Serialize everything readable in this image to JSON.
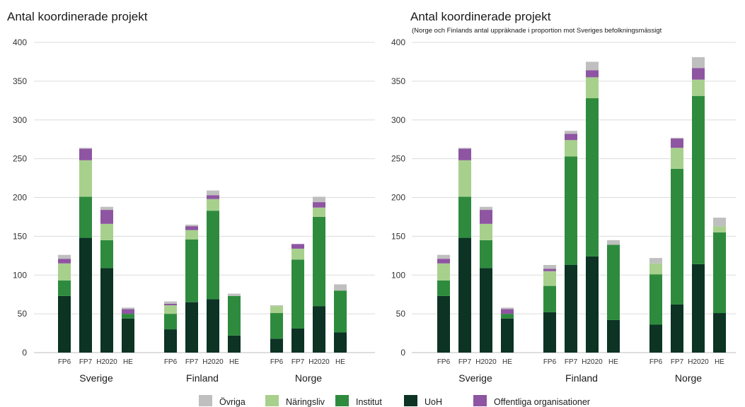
{
  "colors": {
    "Övriga": "#bfbfbf",
    "Näringsliv": "#a8d08d",
    "Institut": "#2e8b3e",
    "UoH": "#0c3324",
    "Offentliga organisationer": "#8e55a2"
  },
  "legend": [
    "Övriga",
    "Näringsliv",
    "Institut",
    "UoH",
    "Offentliga organisationer"
  ],
  "chart_data": [
    {
      "type": "bar",
      "stacked": true,
      "title": "Antal koordinerade projekt",
      "subtitle": "",
      "ylim": [
        0,
        400
      ],
      "yticks": [
        0,
        50,
        100,
        150,
        200,
        250,
        300,
        350,
        400
      ],
      "grid": true,
      "groups": [
        {
          "name": "Sverige",
          "categories": [
            "FP6",
            "FP7",
            "H2020",
            "HE"
          ],
          "series": {
            "UoH": [
              73,
              148,
              109,
              44
            ],
            "Institut": [
              20,
              53,
              36,
              6
            ],
            "Näringsliv": [
              22,
              47,
              21,
              0
            ],
            "Offentliga organisationer": [
              6,
              15,
              18,
              6
            ],
            "Övriga": [
              5,
              1,
              4,
              2
            ]
          }
        },
        {
          "name": "Finland",
          "categories": [
            "FP6",
            "FP7",
            "H2020",
            "HE"
          ],
          "series": {
            "UoH": [
              30,
              65,
              69,
              22
            ],
            "Institut": [
              20,
              81,
              114,
              51
            ],
            "Näringsliv": [
              11,
              12,
              15,
              0
            ],
            "Offentliga organisationer": [
              2,
              5,
              5,
              0
            ],
            "Övriga": [
              3,
              2,
              6,
              3
            ]
          }
        },
        {
          "name": "Norge",
          "categories": [
            "FP6",
            "FP7",
            "H2020",
            "HE"
          ],
          "series": {
            "UoH": [
              18,
              31,
              60,
              26
            ],
            "Institut": [
              33,
              89,
              115,
              54
            ],
            "Näringsliv": [
              9,
              14,
              12,
              0
            ],
            "Offentliga organisationer": [
              0,
              6,
              7,
              0
            ],
            "Övriga": [
              1,
              0,
              7,
              8
            ]
          }
        }
      ],
      "legend_position": "bottom"
    },
    {
      "type": "bar",
      "stacked": true,
      "title": "Antal koordinerade projekt",
      "subtitle": "(Norge och Finlands antal uppräknade i proportion mot Sveriges befolkningsmässigt",
      "ylim": [
        0,
        400
      ],
      "yticks": [
        0,
        50,
        100,
        150,
        200,
        250,
        300,
        350,
        400
      ],
      "grid": true,
      "groups": [
        {
          "name": "Sverige",
          "categories": [
            "FP6",
            "FP7",
            "H2020",
            "HE"
          ],
          "series": {
            "UoH": [
              73,
              148,
              109,
              44
            ],
            "Institut": [
              20,
              53,
              36,
              6
            ],
            "Näringsliv": [
              22,
              47,
              21,
              0
            ],
            "Offentliga organisationer": [
              6,
              15,
              18,
              6
            ],
            "Övriga": [
              5,
              1,
              4,
              2
            ]
          }
        },
        {
          "name": "Finland",
          "categories": [
            "FP6",
            "FP7",
            "H2020",
            "HE"
          ],
          "series": {
            "UoH": [
              52,
              113,
              124,
              42
            ],
            "Institut": [
              34,
              140,
              204,
              97
            ],
            "Näringsliv": [
              19,
              21,
              27,
              0
            ],
            "Offentliga organisationer": [
              3,
              8,
              9,
              0
            ],
            "Övriga": [
              5,
              4,
              11,
              6
            ]
          }
        },
        {
          "name": "Norge",
          "categories": [
            "FP6",
            "FP7",
            "H2020",
            "HE"
          ],
          "series": {
            "UoH": [
              36,
              62,
              114,
              51
            ],
            "Institut": [
              65,
              175,
              217,
              104
            ],
            "Näringsliv": [
              14,
              27,
              21,
              8
            ],
            "Offentliga organisationer": [
              0,
              12,
              15,
              0
            ],
            "Övriga": [
              7,
              1,
              14,
              11
            ]
          }
        }
      ],
      "legend_position": "bottom"
    }
  ]
}
